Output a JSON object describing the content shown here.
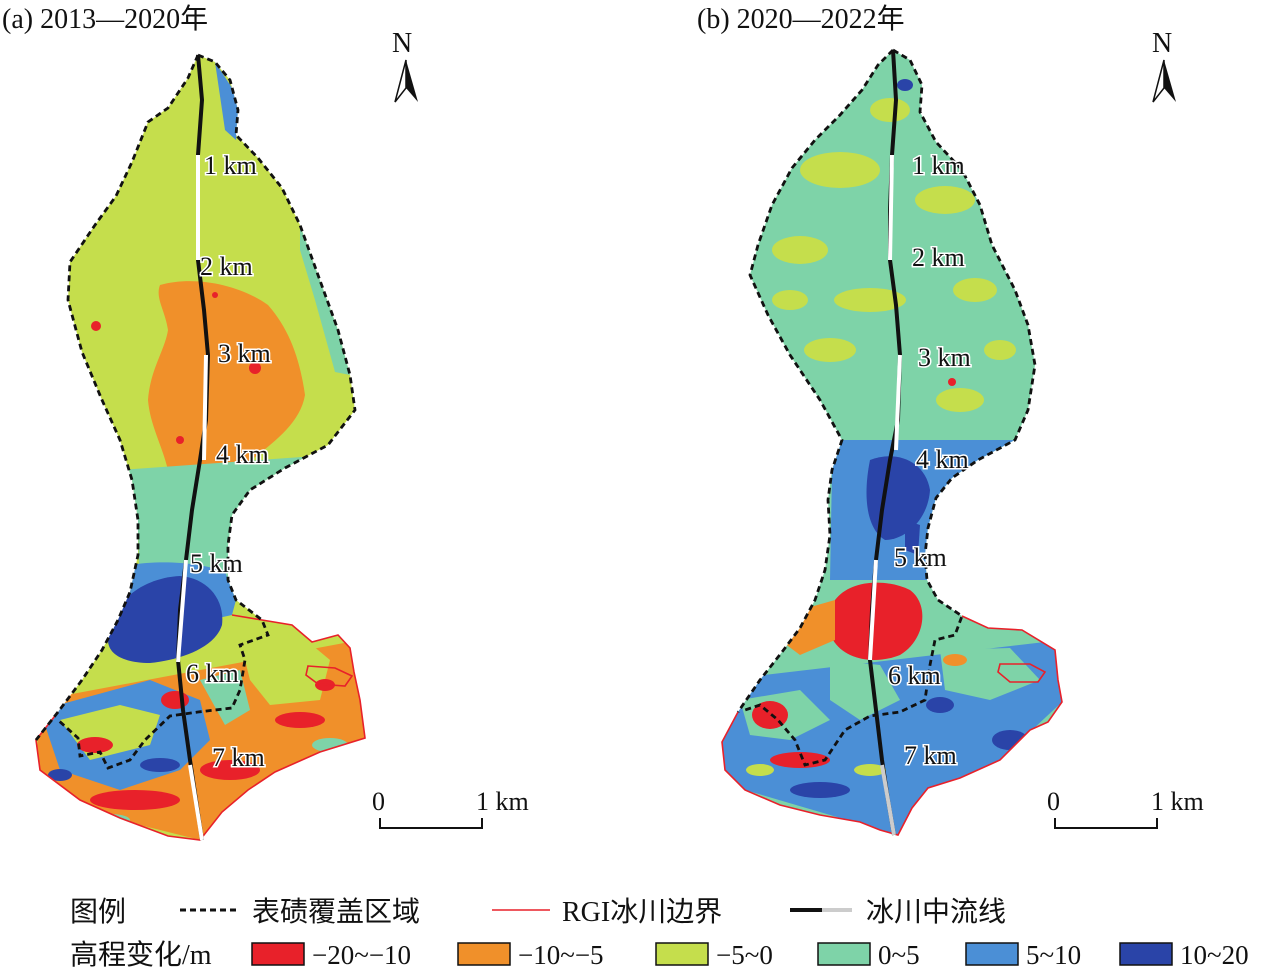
{
  "panels": [
    {
      "label": "(a) 2013—2020年",
      "distance_marks": [
        "1 km",
        "2 km",
        "3 km",
        "4 km",
        "5 km",
        "6 km",
        "7 km"
      ]
    },
    {
      "label": "(b) 2020—2022年",
      "distance_marks": [
        "1 km",
        "2 km",
        "3 km",
        "4 km",
        "5 km",
        "6 km",
        "7 km"
      ]
    }
  ],
  "north_label": "N",
  "scale_bar": {
    "start": "0",
    "end": "1 km"
  },
  "legend": {
    "title": "图例",
    "debris_label": "表碛覆盖区域",
    "rgi_label": "RGI冰川边界",
    "flowline_label": "冰川中流线",
    "elev_title": "高程变化/m",
    "classes": [
      {
        "label": "−20~−10",
        "color": "#e8212a"
      },
      {
        "label": "−10~−5",
        "color": "#f0902a"
      },
      {
        "label": "−5~0",
        "color": "#c5de4c"
      },
      {
        "label": "0~5",
        "color": "#7ed3a8"
      },
      {
        "label": "5~10",
        "color": "#4b8fd6"
      },
      {
        "label": "10~20",
        "color": "#2a44a8"
      }
    ]
  }
}
